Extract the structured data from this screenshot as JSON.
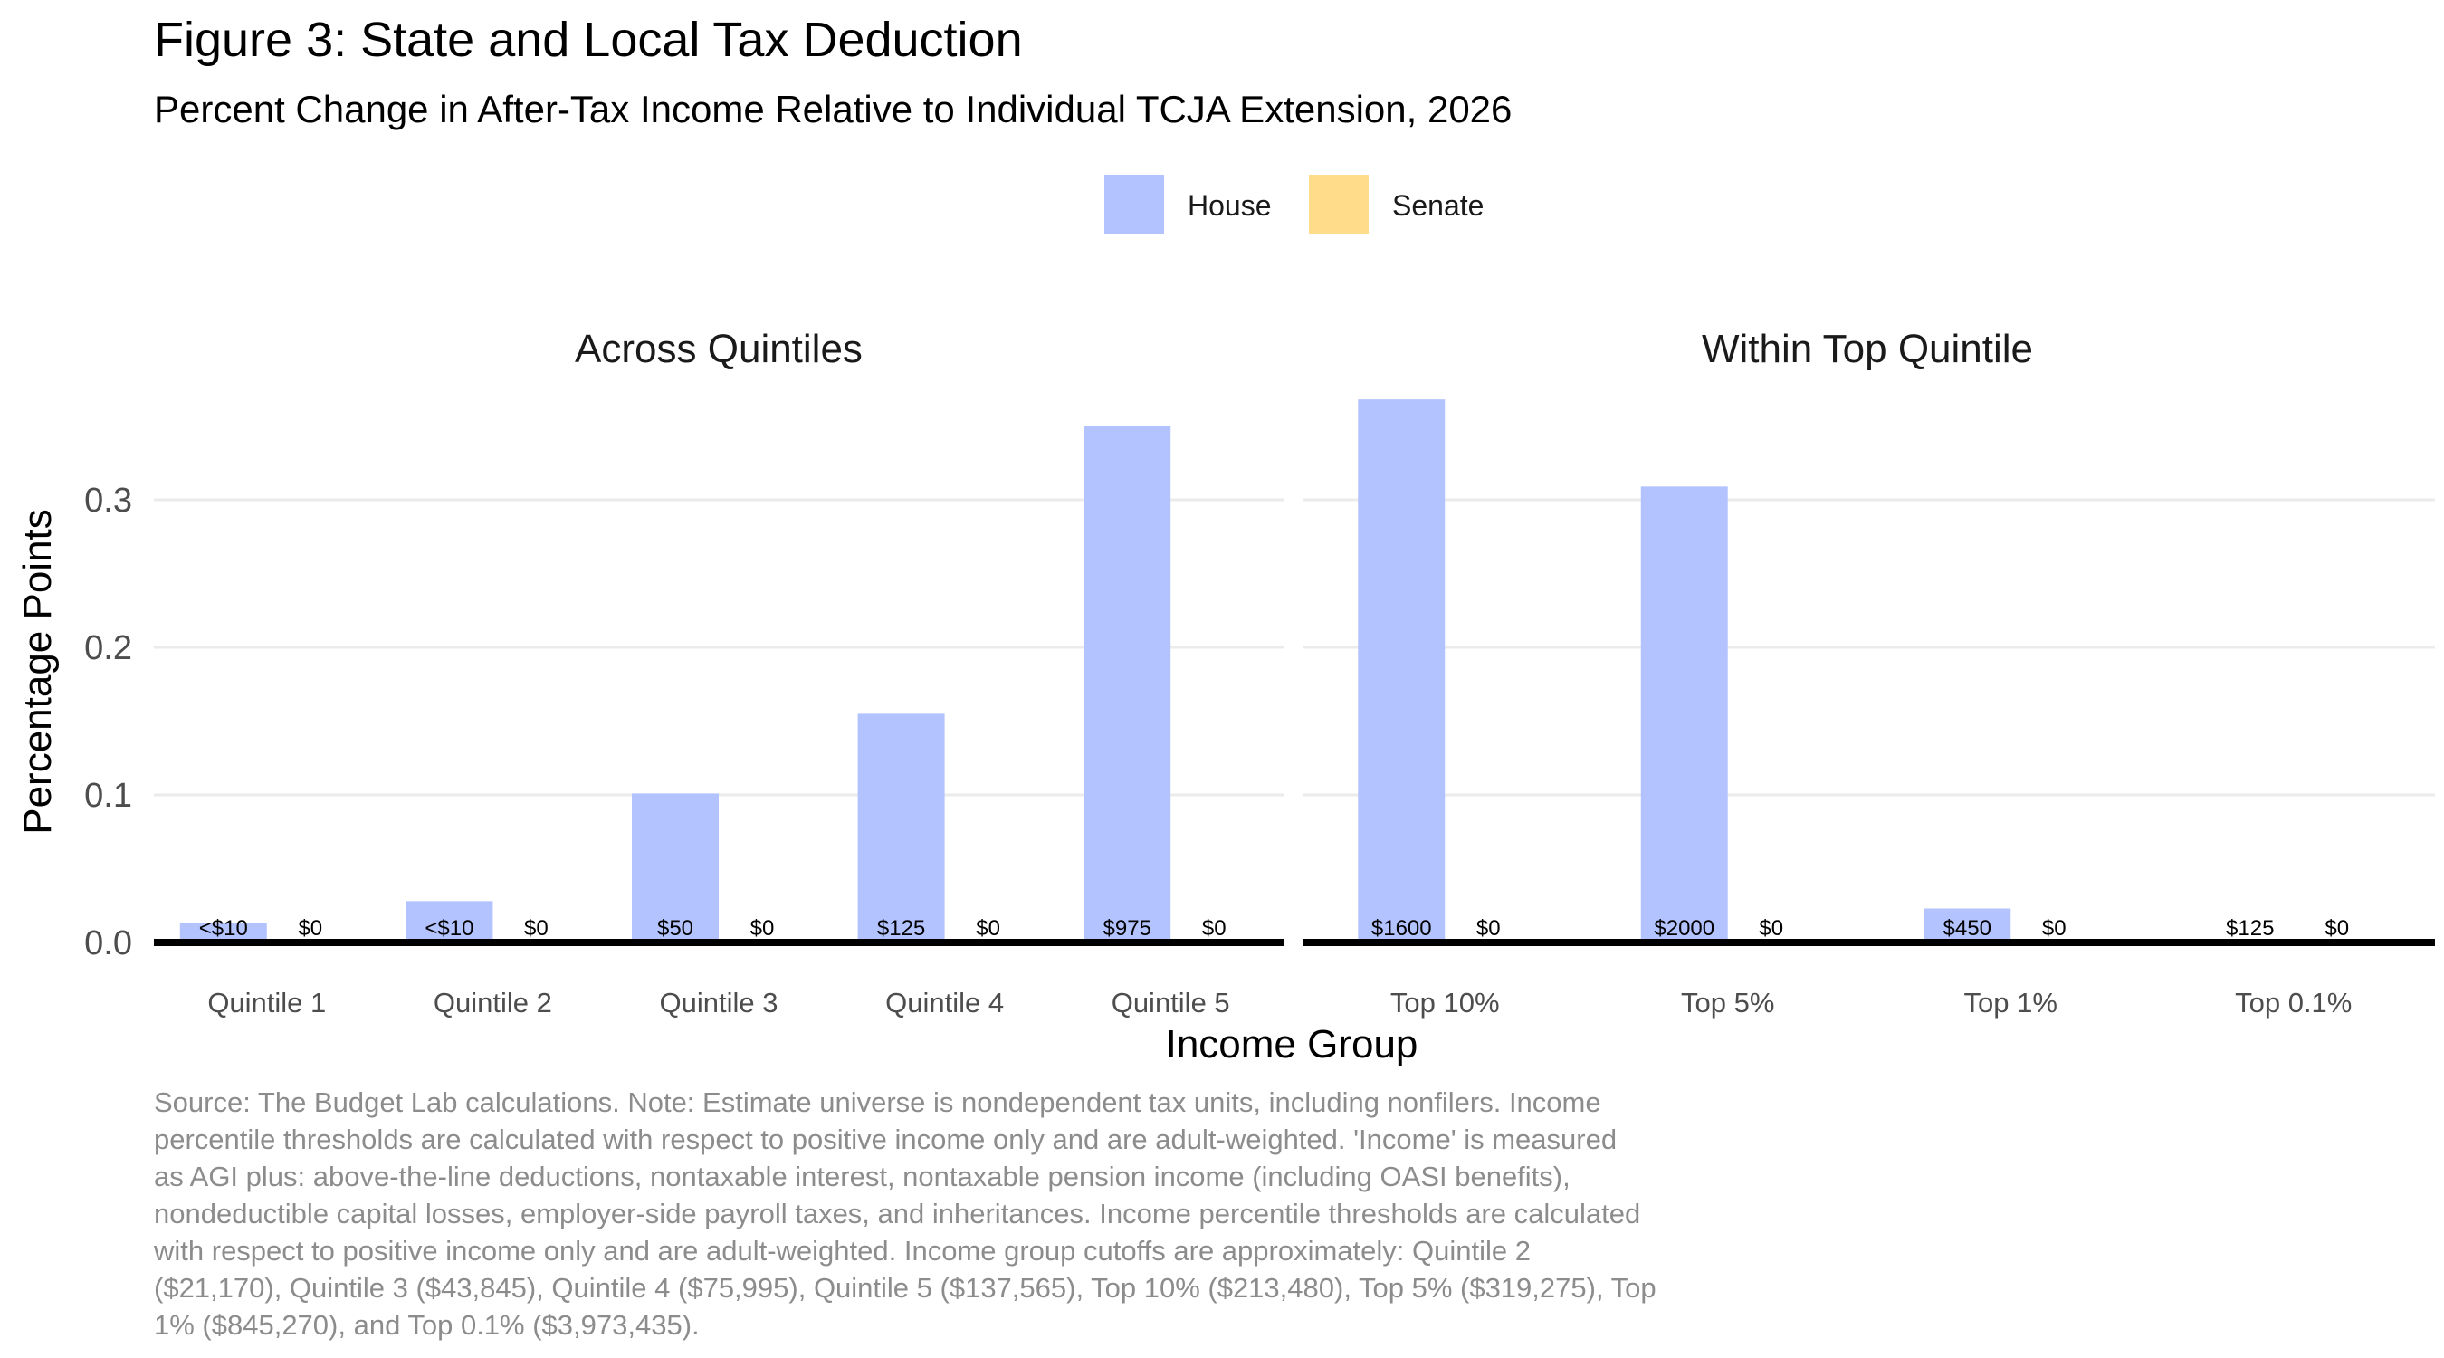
{
  "colors": {
    "house": "#b3c3ff",
    "senate": "#ffdc8a",
    "grid": "#ebebeb",
    "baseline": "#000000"
  },
  "chart_data": {
    "type": "bar",
    "title": "Figure 3: State and Local Tax Deduction",
    "subtitle": "Percent Change in After-Tax Income Relative to Individual TCJA Extension, 2026",
    "xlabel": "Income Group",
    "ylabel": "Percentage Points",
    "ylim": [
      0,
      0.37
    ],
    "yticks": [
      0.0,
      0.1,
      0.2,
      0.3
    ],
    "ytick_labels": [
      "0.0",
      "0.1",
      "0.2",
      "0.3"
    ],
    "grid": true,
    "legend": {
      "position": "top",
      "entries": [
        "House",
        "Senate"
      ]
    },
    "panels": [
      {
        "facet_title": "Across Quintiles",
        "categories": [
          "Quintile 1",
          "Quintile 2",
          "Quintile 3",
          "Quintile 4",
          "Quintile 5"
        ],
        "series": [
          {
            "name": "House",
            "values": [
              0.013,
              0.028,
              0.101,
              0.155,
              0.35
            ],
            "labels": [
              "<$10",
              "<$10",
              "$50",
              "$125",
              "$975"
            ]
          },
          {
            "name": "Senate",
            "values": [
              0,
              0,
              0,
              0,
              0
            ],
            "labels": [
              "$0",
              "$0",
              "$0",
              "$0",
              "$0"
            ]
          }
        ]
      },
      {
        "facet_title": "Within Top Quintile",
        "categories": [
          "Top 10%",
          "Top 5%",
          "Top 1%",
          "Top 0.1%"
        ],
        "series": [
          {
            "name": "House",
            "values": [
              0.368,
              0.309,
              0.023,
              0.0
            ],
            "labels": [
              "$1600",
              "$2000",
              "$450",
              "$125"
            ]
          },
          {
            "name": "Senate",
            "values": [
              0,
              0,
              0,
              0
            ],
            "labels": [
              "$0",
              "$0",
              "$0",
              "$0"
            ]
          }
        ]
      }
    ],
    "caption_lines": [
      "Source: The Budget Lab calculations. Note: Estimate universe is nondependent tax units, including nonfilers. Income",
      "percentile thresholds are calculated with respect to positive income only and are adult-weighted. 'Income' is measured",
      "as AGI plus: above-the-line deductions, nontaxable interest, nontaxable pension income (including OASI benefits),",
      "nondeductible capital losses, employer-side payroll taxes, and inheritances. Income percentile thresholds are calculated",
      "with respect to positive income only and are adult-weighted. Income group cutoffs are approximately: Quintile 2",
      "($21,170), Quintile 3 ($43,845), Quintile 4 ($75,995), Quintile 5 ($137,565), Top 10% ($213,480), Top 5% ($319,275), Top",
      "1% ($845,270), and Top 0.1% ($3,973,435)."
    ]
  }
}
